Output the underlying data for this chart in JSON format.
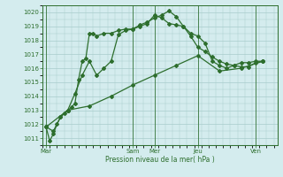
{
  "background_color": "#d4ecee",
  "grid_color": "#a8cccc",
  "line_color": "#2d6e2d",
  "xlabel": "Pression niveau de la mer( hPa )",
  "ylim": [
    1010.5,
    1020.5
  ],
  "yticks": [
    1011,
    1012,
    1013,
    1014,
    1015,
    1016,
    1017,
    1018,
    1019,
    1020
  ],
  "xlim": [
    0,
    130
  ],
  "x_tick_positions": [
    2,
    50,
    62,
    86,
    118
  ],
  "x_labels": [
    "Mar",
    "Sam",
    "Mer",
    "Jeu",
    "Ven"
  ],
  "vline_positions": [
    2,
    50,
    62,
    86,
    118
  ],
  "series1_x": [
    2,
    4,
    6,
    8,
    10,
    12,
    14,
    16,
    18,
    20,
    22,
    24,
    26,
    28,
    30,
    34,
    38,
    42,
    46,
    50,
    54,
    58,
    62,
    66,
    70,
    74,
    78,
    82,
    86,
    90,
    94,
    98,
    102,
    106,
    110,
    114,
    118,
    122
  ],
  "series1_y": [
    1011.8,
    1010.8,
    1011.3,
    1012.0,
    1012.5,
    1012.8,
    1013.0,
    1013.2,
    1013.5,
    1015.2,
    1016.5,
    1016.7,
    1018.5,
    1018.5,
    1018.3,
    1018.5,
    1018.5,
    1018.7,
    1018.8,
    1018.8,
    1019.1,
    1019.3,
    1019.6,
    1019.8,
    1020.1,
    1019.7,
    1019.0,
    1018.5,
    1018.3,
    1017.8,
    1016.5,
    1016.2,
    1016.0,
    1016.2,
    1016.4,
    1016.4,
    1016.5,
    1016.5
  ],
  "series2_x": [
    2,
    6,
    10,
    14,
    18,
    22,
    26,
    30,
    34,
    38,
    42,
    46,
    50,
    54,
    58,
    62,
    66,
    70,
    74,
    78,
    82,
    86,
    90,
    94,
    98,
    102,
    106,
    110,
    114,
    118,
    122
  ],
  "series2_y": [
    1011.8,
    1011.5,
    1012.5,
    1013.0,
    1014.2,
    1015.5,
    1016.5,
    1015.5,
    1016.0,
    1016.5,
    1018.4,
    1018.7,
    1018.8,
    1019.0,
    1019.2,
    1019.8,
    1019.6,
    1019.2,
    1019.1,
    1019.0,
    1018.3,
    1017.5,
    1017.2,
    1016.8,
    1016.5,
    1016.3,
    1016.2,
    1016.1,
    1016.1,
    1016.4,
    1016.5
  ],
  "series3_x": [
    2,
    14,
    26,
    38,
    50,
    62,
    74,
    86,
    98,
    110,
    122
  ],
  "series3_y": [
    1011.8,
    1013.0,
    1013.3,
    1014.0,
    1014.8,
    1015.5,
    1016.2,
    1016.9,
    1015.8,
    1016.0,
    1016.5
  ]
}
